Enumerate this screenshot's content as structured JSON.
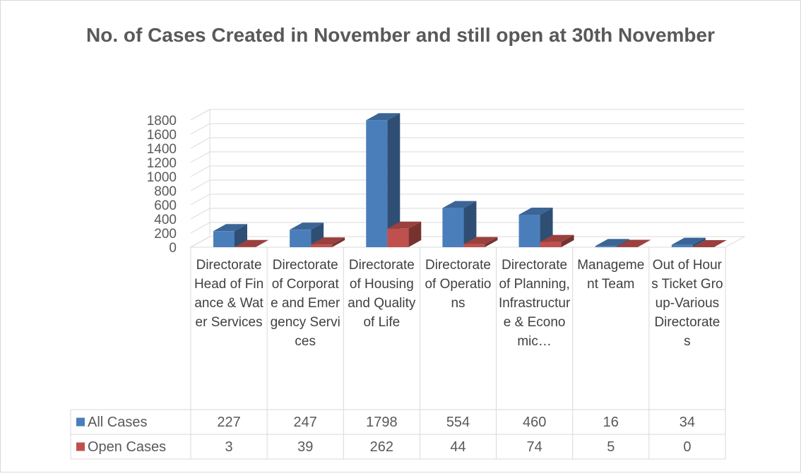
{
  "chart_data": {
    "type": "bar3d",
    "title": "No. of Cases Created in November and still open at 30th November",
    "categories": [
      "Directorate Head of Finance & Water Services",
      "Directorate of Corporate and Emergency Services",
      "Directorate of Housing and Quality of Life",
      "Directorate of Operations",
      "Directorate of Planning, Infrastructure & Economic…",
      "Management Team",
      "Out of Hours Ticket Group-Various Directorates"
    ],
    "series": [
      {
        "name": "All Cases",
        "color": "#4a7ebb",
        "values": [
          227,
          247,
          1798,
          554,
          460,
          16,
          34
        ]
      },
      {
        "name": "Open Cases",
        "color": "#c0504d",
        "values": [
          3,
          39,
          262,
          44,
          74,
          5,
          0
        ]
      }
    ],
    "ylim": [
      0,
      1800
    ],
    "yticks": [
      0,
      200,
      400,
      600,
      800,
      1000,
      1200,
      1400,
      1600,
      1800
    ],
    "grid": true,
    "data_table": true
  }
}
